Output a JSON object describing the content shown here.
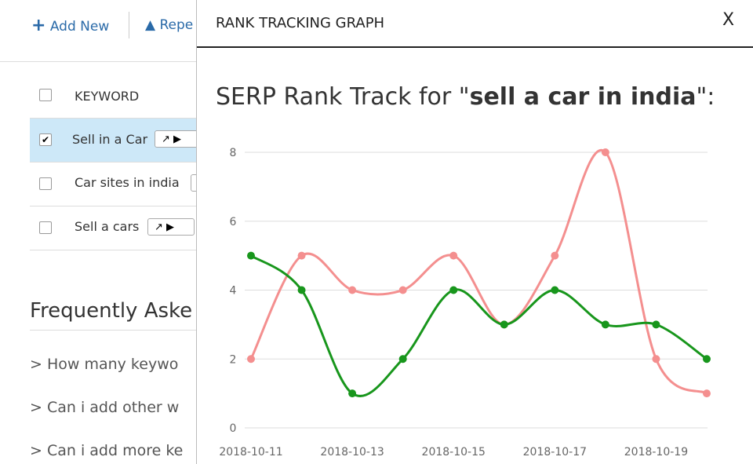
{
  "toolbar": {
    "add_new": "Add New",
    "report": "Repe"
  },
  "keywords": {
    "header": "KEYWORD",
    "rows": [
      "Sell in a Car",
      "Car sites in india",
      "Sell a cars"
    ]
  },
  "faq": {
    "title": "Frequently Aske",
    "items": [
      "How many keywo",
      "Can i add other w",
      "Can i add more ke"
    ]
  },
  "modal": {
    "header": "RANK TRACKING GRAPH",
    "close": "X",
    "title_prefix": "SERP Rank Track for \"",
    "title_keyword": "sell a car in india",
    "title_suffix": "\":"
  },
  "chart_data": {
    "type": "line",
    "categories": [
      "2018-10-11",
      null,
      "2018-10-13",
      null,
      "2018-10-15",
      null,
      "2018-10-17",
      null,
      "2018-10-19",
      null
    ],
    "series": [
      {
        "color": "#f48f8f",
        "values": [
          2,
          5,
          4,
          4,
          5,
          3,
          5,
          8,
          2,
          1
        ]
      },
      {
        "color": "#18961c",
        "values": [
          5,
          4,
          1,
          2,
          4,
          3,
          4,
          3,
          3,
          2
        ]
      }
    ],
    "ylim": [
      0,
      8
    ],
    "yticks": [
      0,
      2,
      4,
      6,
      8
    ],
    "grid": true,
    "smooth": true
  }
}
